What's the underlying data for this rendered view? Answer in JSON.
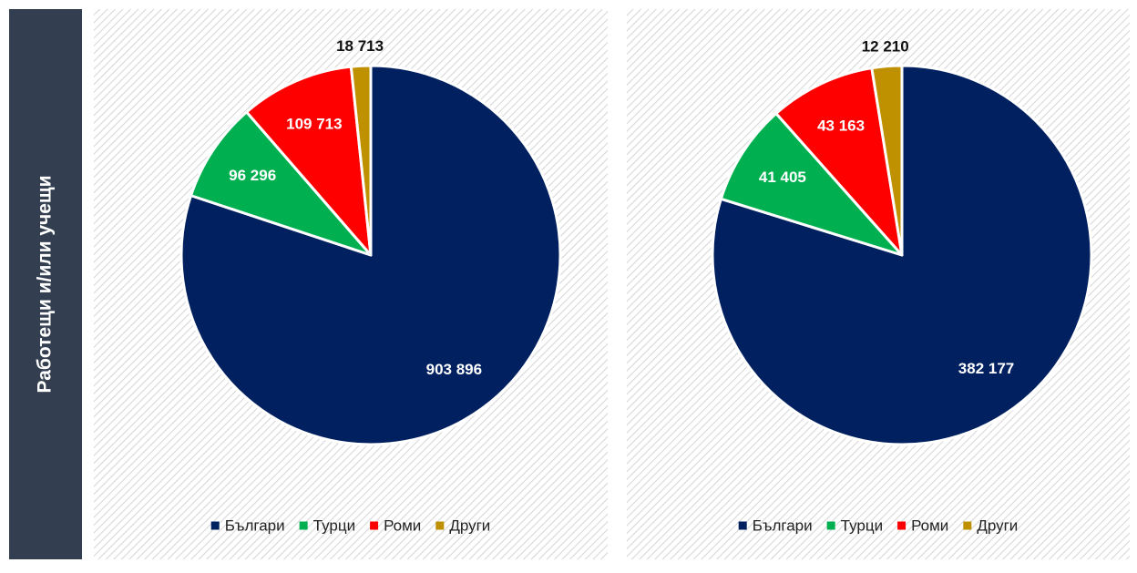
{
  "side_label": "Работещи и/или учещи",
  "chart_data": [
    {
      "type": "pie",
      "categories": [
        "Българи",
        "Турци",
        "Роми",
        "Други"
      ],
      "values": [
        903896,
        96296,
        109713,
        18713
      ],
      "value_labels": [
        "903 896",
        "96 296",
        "109 713",
        "18 713"
      ],
      "colors": [
        "#002060",
        "#00b050",
        "#ff0000",
        "#bf9000"
      ],
      "legend": "bottom"
    },
    {
      "type": "pie",
      "categories": [
        "Българи",
        "Турци",
        "Роми",
        "Други"
      ],
      "values": [
        382177,
        41405,
        43163,
        12210
      ],
      "value_labels": [
        "382 177",
        "41 405",
        "43 163",
        "12 210"
      ],
      "colors": [
        "#002060",
        "#00b050",
        "#ff0000",
        "#bf9000"
      ],
      "legend": "bottom"
    }
  ]
}
